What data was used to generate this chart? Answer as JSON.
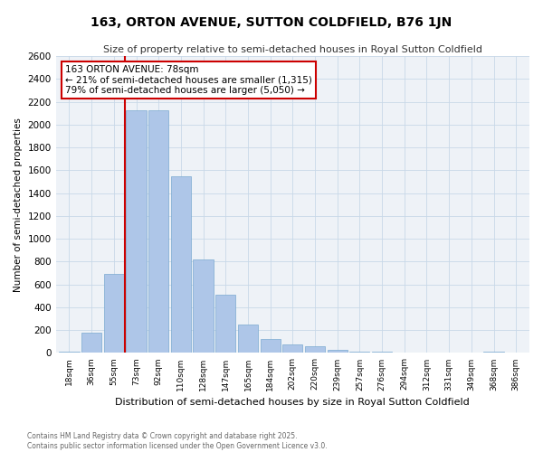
{
  "title": "163, ORTON AVENUE, SUTTON COLDFIELD, B76 1JN",
  "subtitle": "Size of property relative to semi-detached houses in Royal Sutton Coldfield",
  "xlabel": "Distribution of semi-detached houses by size in Royal Sutton Coldfield",
  "ylabel": "Number of semi-detached properties",
  "footnote": "Contains HM Land Registry data © Crown copyright and database right 2025.\nContains public sector information licensed under the Open Government Licence v3.0.",
  "categories": [
    "18sqm",
    "36sqm",
    "55sqm",
    "73sqm",
    "92sqm",
    "110sqm",
    "128sqm",
    "147sqm",
    "165sqm",
    "184sqm",
    "202sqm",
    "220sqm",
    "239sqm",
    "257sqm",
    "276sqm",
    "294sqm",
    "312sqm",
    "331sqm",
    "349sqm",
    "368sqm",
    "386sqm"
  ],
  "values": [
    10,
    175,
    690,
    2130,
    2130,
    1550,
    820,
    510,
    245,
    120,
    75,
    55,
    30,
    15,
    8,
    5,
    3,
    2,
    2,
    15,
    2
  ],
  "bar_color": "#aec6e8",
  "bar_edge_color": "#7aaad0",
  "grid_color": "#c8d8e8",
  "bg_color": "#eef2f7",
  "annotation_text": "163 ORTON AVENUE: 78sqm\n← 21% of semi-detached houses are smaller (1,315)\n79% of semi-detached houses are larger (5,050) →",
  "annotation_box_color": "#cc0000",
  "red_line_color": "#cc0000",
  "ylim": [
    0,
    2600
  ],
  "yticks": [
    0,
    200,
    400,
    600,
    800,
    1000,
    1200,
    1400,
    1600,
    1800,
    2000,
    2200,
    2400,
    2600
  ],
  "property_bin_index": 3
}
